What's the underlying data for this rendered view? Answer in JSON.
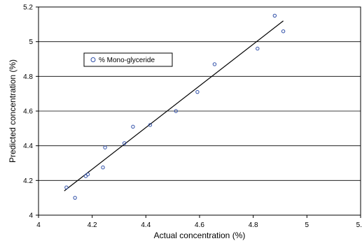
{
  "chart_data": {
    "type": "scatter",
    "xlabel": "Actual concentration (%)",
    "ylabel": "Predicted concentration (%)",
    "xlim": [
      4,
      5.5
    ],
    "ylim": [
      4,
      5.2
    ],
    "x_ticks": [
      "4",
      "4.2",
      "4.4",
      "4.6",
      "4.8",
      "5",
      "5."
    ],
    "y_ticks": [
      "4",
      "4.2",
      "4.4",
      "4.6",
      "4.8",
      "5",
      "5.2"
    ],
    "grid": "horizontal",
    "legend_position": "top-left",
    "series": [
      {
        "name": "% Mono-glyceride",
        "marker": "open-circle",
        "color": "#2f4fa8",
        "points": [
          {
            "x": 4.13,
            "y": 4.16
          },
          {
            "x": 4.17,
            "y": 4.1
          },
          {
            "x": 4.22,
            "y": 4.225
          },
          {
            "x": 4.23,
            "y": 4.235
          },
          {
            "x": 4.3,
            "y": 4.275
          },
          {
            "x": 4.31,
            "y": 4.39
          },
          {
            "x": 4.4,
            "y": 4.415
          },
          {
            "x": 4.44,
            "y": 4.51
          },
          {
            "x": 4.52,
            "y": 4.52
          },
          {
            "x": 4.64,
            "y": 4.6
          },
          {
            "x": 4.74,
            "y": 4.71
          },
          {
            "x": 4.82,
            "y": 4.87
          },
          {
            "x": 5.02,
            "y": 4.96
          },
          {
            "x": 5.1,
            "y": 5.15
          },
          {
            "x": 5.14,
            "y": 5.06
          }
        ]
      }
    ],
    "trendline": {
      "color": "#000000",
      "start": {
        "x": 4.12,
        "y": 4.14
      },
      "end": {
        "x": 5.14,
        "y": 5.12
      }
    }
  }
}
